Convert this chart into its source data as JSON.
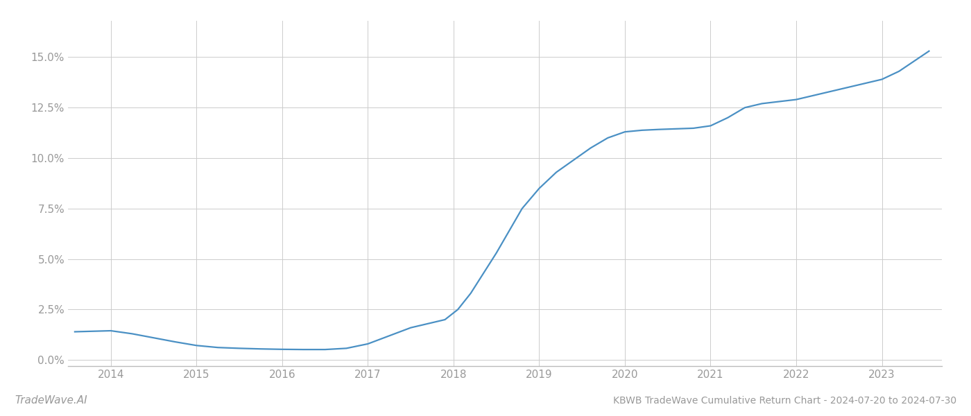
{
  "title": "KBWB TradeWave Cumulative Return Chart - 2024-07-20 to 2024-07-30",
  "watermark": "TradeWave.AI",
  "line_color": "#4a90c4",
  "background_color": "#ffffff",
  "grid_color": "#cccccc",
  "x_values": [
    2013.58,
    2014.0,
    2014.25,
    2014.5,
    2014.75,
    2015.0,
    2015.25,
    2015.5,
    2015.75,
    2016.0,
    2016.25,
    2016.5,
    2016.75,
    2017.0,
    2017.25,
    2017.5,
    2017.75,
    2017.9,
    2018.05,
    2018.2,
    2018.35,
    2018.5,
    2018.65,
    2018.8,
    2019.0,
    2019.2,
    2019.4,
    2019.6,
    2019.8,
    2020.0,
    2020.2,
    2020.4,
    2020.6,
    2020.8,
    2021.0,
    2021.2,
    2021.4,
    2021.6,
    2021.8,
    2022.0,
    2022.2,
    2022.4,
    2022.6,
    2022.8,
    2023.0,
    2023.2,
    2023.55
  ],
  "y_values": [
    1.4,
    1.45,
    1.3,
    1.1,
    0.9,
    0.72,
    0.62,
    0.58,
    0.55,
    0.53,
    0.52,
    0.52,
    0.58,
    0.8,
    1.2,
    1.6,
    1.85,
    2.0,
    2.5,
    3.3,
    4.3,
    5.3,
    6.4,
    7.5,
    8.5,
    9.3,
    9.9,
    10.5,
    11.0,
    11.3,
    11.38,
    11.42,
    11.45,
    11.48,
    11.6,
    12.0,
    12.5,
    12.7,
    12.8,
    12.9,
    13.1,
    13.3,
    13.5,
    13.7,
    13.9,
    14.3,
    15.3
  ],
  "xlim": [
    2013.5,
    2023.7
  ],
  "ylim": [
    -0.3,
    16.8
  ],
  "xticks": [
    2014,
    2015,
    2016,
    2017,
    2018,
    2019,
    2020,
    2021,
    2022,
    2023
  ],
  "yticks": [
    0.0,
    2.5,
    5.0,
    7.5,
    10.0,
    12.5,
    15.0
  ],
  "line_width": 1.6,
  "title_fontsize": 10,
  "tick_fontsize": 11,
  "watermark_fontsize": 11,
  "axis_label_color": "#999999",
  "bottom_spine_color": "#bbbbbb"
}
